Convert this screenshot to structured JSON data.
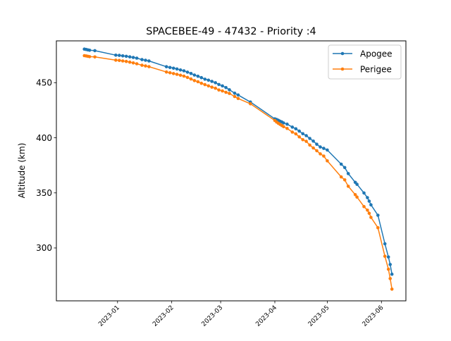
{
  "chart_data": {
    "type": "line",
    "title": "SPACEBEE-49 - 47432 - Priority :4",
    "xlabel": "",
    "ylabel": "Altitude (km)",
    "x_ticks": [
      "2023-01",
      "2023-02",
      "2023-03",
      "2023-04",
      "2023-05",
      "2023-06"
    ],
    "y_ticks": [
      300,
      350,
      400,
      450
    ],
    "xlim": [
      "2022-11-27",
      "2023-06-15"
    ],
    "ylim": [
      252,
      488
    ],
    "legend": "top-right",
    "grid": false,
    "series": [
      {
        "name": "Apogee",
        "color": "#1f77b4",
        "points": [
          [
            "2022-12-13",
            480.5
          ],
          [
            "2022-12-14",
            480.2
          ],
          [
            "2022-12-15",
            479.8
          ],
          [
            "2022-12-16",
            479.5
          ],
          [
            "2022-12-19",
            479.1
          ],
          [
            "2022-12-31",
            475.0
          ],
          [
            "2023-01-02",
            474.8
          ],
          [
            "2023-01-04",
            474.4
          ],
          [
            "2023-01-06",
            474.0
          ],
          [
            "2023-01-08",
            473.5
          ],
          [
            "2023-01-10",
            473.0
          ],
          [
            "2023-01-12",
            472.3
          ],
          [
            "2023-01-15",
            471.0
          ],
          [
            "2023-01-17",
            470.4
          ],
          [
            "2023-01-19",
            469.8
          ],
          [
            "2023-01-29",
            464.5
          ],
          [
            "2023-01-31",
            463.8
          ],
          [
            "2023-02-02",
            463.2
          ],
          [
            "2023-02-04",
            462.5
          ],
          [
            "2023-02-06",
            461.6
          ],
          [
            "2023-02-08",
            460.8
          ],
          [
            "2023-02-10",
            459.6
          ],
          [
            "2023-02-12",
            458.4
          ],
          [
            "2023-02-14",
            457.0
          ],
          [
            "2023-02-16",
            455.9
          ],
          [
            "2023-02-18",
            454.6
          ],
          [
            "2023-02-20",
            453.2
          ],
          [
            "2023-02-22",
            452.3
          ],
          [
            "2023-02-24",
            451.2
          ],
          [
            "2023-02-26",
            450.0
          ],
          [
            "2023-02-28",
            448.4
          ],
          [
            "2023-03-02",
            447.1
          ],
          [
            "2023-03-04",
            445.6
          ],
          [
            "2023-03-06",
            443.6
          ],
          [
            "2023-03-09",
            440.5
          ],
          [
            "2023-03-11",
            438.9
          ],
          [
            "2023-03-18",
            432.5
          ],
          [
            "2023-04-01",
            417.2
          ],
          [
            "2023-04-02",
            416.6
          ],
          [
            "2023-04-03",
            415.9
          ],
          [
            "2023-04-04",
            415.1
          ],
          [
            "2023-04-05",
            414.4
          ],
          [
            "2023-04-06",
            413.5
          ],
          [
            "2023-04-08",
            412.4
          ],
          [
            "2023-04-11",
            409.7
          ],
          [
            "2023-04-13",
            408.2
          ],
          [
            "2023-04-15",
            406.1
          ],
          [
            "2023-04-17",
            403.7
          ],
          [
            "2023-04-19",
            402.0
          ],
          [
            "2023-04-21",
            399.4
          ],
          [
            "2023-04-23",
            397.0
          ],
          [
            "2023-04-25",
            394.2
          ],
          [
            "2023-04-27",
            391.7
          ],
          [
            "2023-04-29",
            390.4
          ],
          [
            "2023-05-01",
            388.9
          ],
          [
            "2023-05-09",
            376.1
          ],
          [
            "2023-05-11",
            373.0
          ],
          [
            "2023-05-13",
            367.5
          ],
          [
            "2023-05-17",
            359.6
          ],
          [
            "2023-05-18",
            357.8
          ],
          [
            "2023-05-22",
            349.9
          ],
          [
            "2023-05-24",
            345.7
          ],
          [
            "2023-05-25",
            342.5
          ],
          [
            "2023-05-26",
            339.2
          ],
          [
            "2023-05-30",
            329.7
          ],
          [
            "2023-06-03",
            303.8
          ],
          [
            "2023-06-05",
            291.8
          ],
          [
            "2023-06-06",
            285.0
          ],
          [
            "2023-06-07",
            276.2
          ]
        ]
      },
      {
        "name": "Perigee",
        "color": "#ff7f0e",
        "points": [
          [
            "2022-12-13",
            474.6
          ],
          [
            "2022-12-14",
            474.3
          ],
          [
            "2022-12-15",
            474.0
          ],
          [
            "2022-12-16",
            473.7
          ],
          [
            "2022-12-19",
            473.4
          ],
          [
            "2022-12-31",
            470.5
          ],
          [
            "2023-01-02",
            470.2
          ],
          [
            "2023-01-04",
            469.8
          ],
          [
            "2023-01-06",
            469.3
          ],
          [
            "2023-01-08",
            468.7
          ],
          [
            "2023-01-10",
            468.0
          ],
          [
            "2023-01-12",
            467.2
          ],
          [
            "2023-01-15",
            465.9
          ],
          [
            "2023-01-17",
            465.2
          ],
          [
            "2023-01-19",
            464.6
          ],
          [
            "2023-01-29",
            459.7
          ],
          [
            "2023-01-31",
            459.0
          ],
          [
            "2023-02-02",
            458.3
          ],
          [
            "2023-02-04",
            457.6
          ],
          [
            "2023-02-06",
            456.8
          ],
          [
            "2023-02-08",
            456.0
          ],
          [
            "2023-02-10",
            454.8
          ],
          [
            "2023-02-12",
            453.4
          ],
          [
            "2023-02-14",
            451.9
          ],
          [
            "2023-02-16",
            450.9
          ],
          [
            "2023-02-18",
            449.5
          ],
          [
            "2023-02-20",
            448.3
          ],
          [
            "2023-02-22",
            447.1
          ],
          [
            "2023-02-24",
            446.0
          ],
          [
            "2023-02-26",
            445.0
          ],
          [
            "2023-02-28",
            443.4
          ],
          [
            "2023-03-02",
            442.5
          ],
          [
            "2023-03-04",
            441.3
          ],
          [
            "2023-03-06",
            440.3
          ],
          [
            "2023-03-09",
            437.5
          ],
          [
            "2023-03-11",
            435.7
          ],
          [
            "2023-03-18",
            430.9
          ],
          [
            "2023-04-01",
            415.7
          ],
          [
            "2023-04-02",
            414.3
          ],
          [
            "2023-04-03",
            413.2
          ],
          [
            "2023-04-04",
            412.2
          ],
          [
            "2023-04-05",
            411.2
          ],
          [
            "2023-04-06",
            410.1
          ],
          [
            "2023-04-08",
            408.5
          ],
          [
            "2023-04-11",
            405.2
          ],
          [
            "2023-04-13",
            403.6
          ],
          [
            "2023-04-15",
            400.8
          ],
          [
            "2023-04-17",
            398.3
          ],
          [
            "2023-04-19",
            396.8
          ],
          [
            "2023-04-21",
            393.4
          ],
          [
            "2023-04-23",
            390.8
          ],
          [
            "2023-04-25",
            388.3
          ],
          [
            "2023-04-27",
            385.4
          ],
          [
            "2023-04-29",
            383.4
          ],
          [
            "2023-05-01",
            379.1
          ],
          [
            "2023-05-09",
            364.5
          ],
          [
            "2023-05-11",
            361.8
          ],
          [
            "2023-05-13",
            356.0
          ],
          [
            "2023-05-17",
            348.4
          ],
          [
            "2023-05-18",
            346.2
          ],
          [
            "2023-05-22",
            337.6
          ],
          [
            "2023-05-24",
            334.3
          ],
          [
            "2023-05-25",
            331.5
          ],
          [
            "2023-05-26",
            327.8
          ],
          [
            "2023-05-30",
            318.4
          ],
          [
            "2023-06-03",
            292.5
          ],
          [
            "2023-06-05",
            280.7
          ],
          [
            "2023-06-06",
            272.2
          ],
          [
            "2023-06-07",
            262.6
          ]
        ]
      }
    ]
  }
}
